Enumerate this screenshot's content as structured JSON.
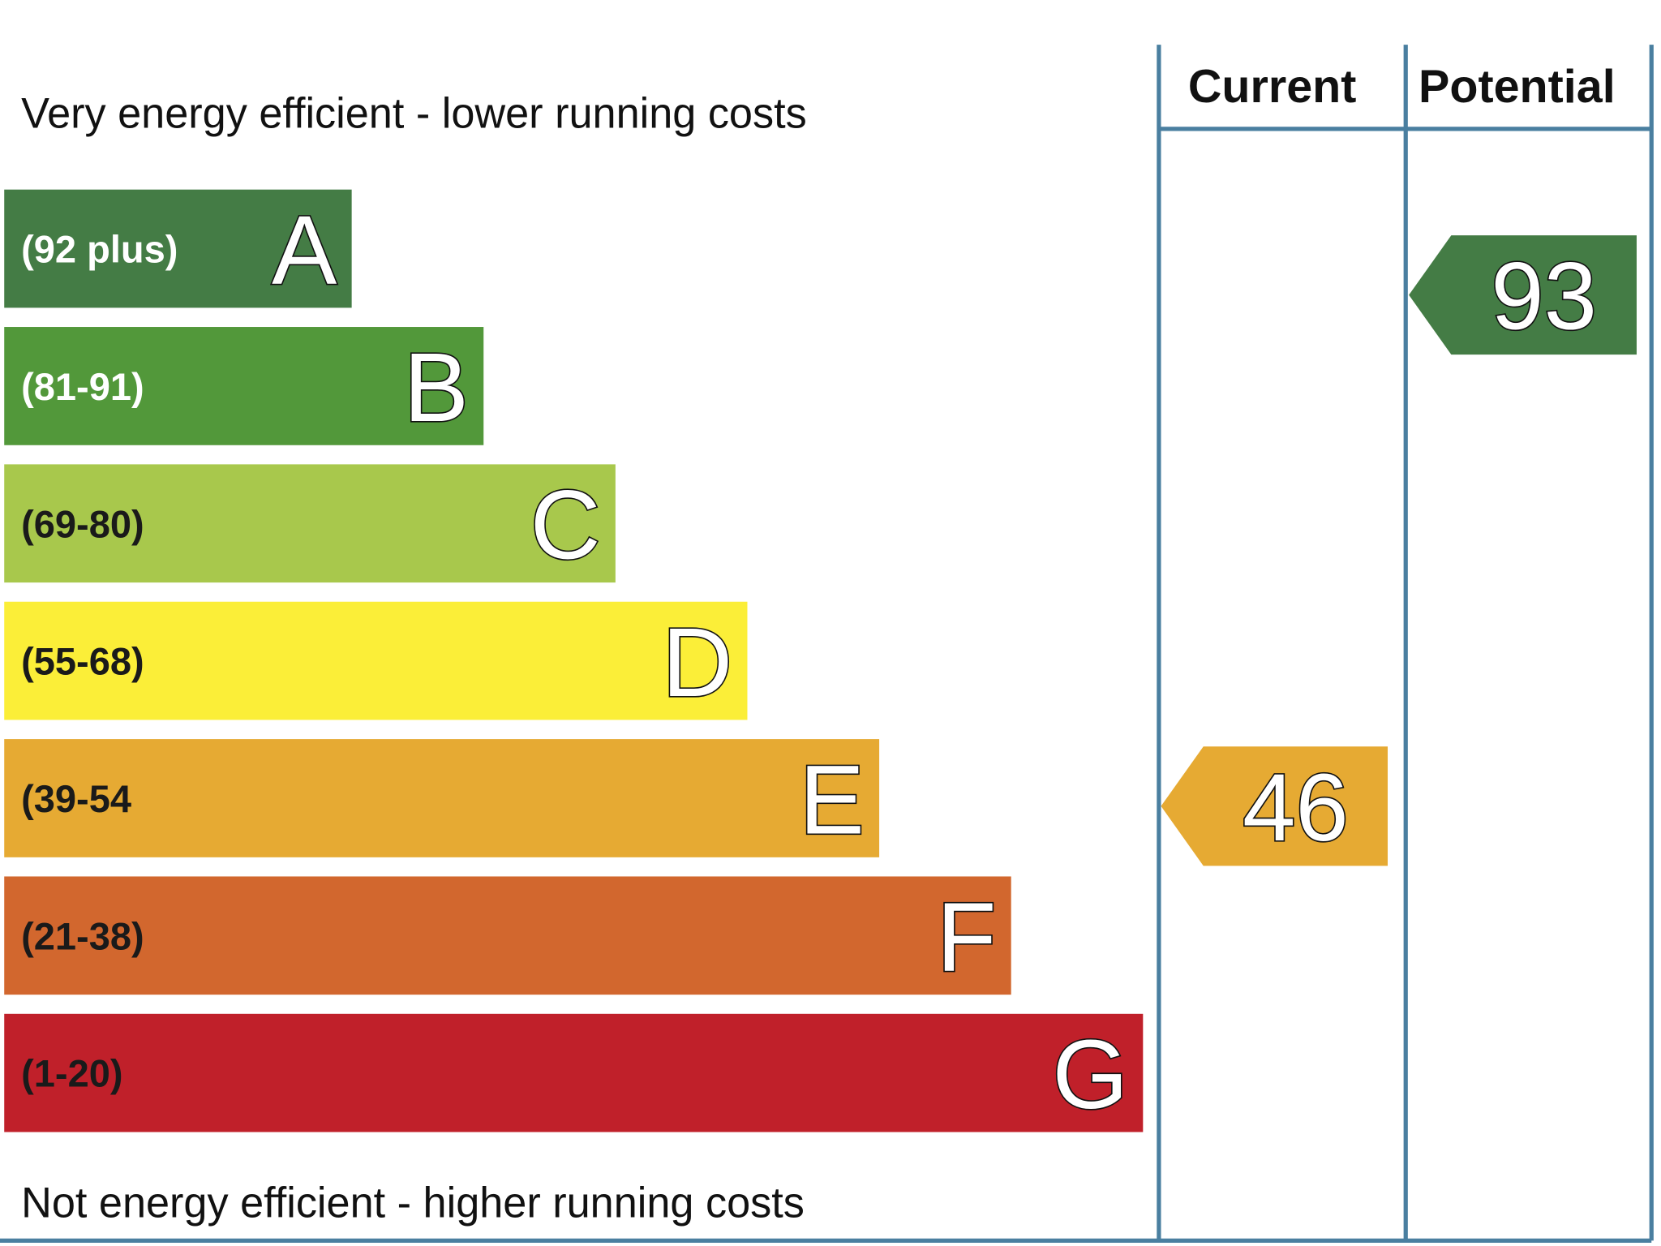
{
  "top_label": "Very energy efficient - lower running costs",
  "bottom_label": "Not energy efficient - higher running costs",
  "columns": [
    "Current",
    "Potential"
  ],
  "bands": [
    {
      "range": "(92 plus)",
      "letter": "A",
      "color": "#447c45",
      "text_color": "#ffffff"
    },
    {
      "range": "(81-91)",
      "letter": "B",
      "color": "#52983a",
      "text_color": "#ffffff"
    },
    {
      "range": "(69-80)",
      "letter": "C",
      "color": "#a8c84c",
      "text_color": "#1a1a1a"
    },
    {
      "range": "(55-68)",
      "letter": "D",
      "color": "#fbee38",
      "text_color": "#1a1a1a"
    },
    {
      "range": "(39-54",
      "letter": "E",
      "color": "#e6aa33",
      "text_color": "#1a1a1a"
    },
    {
      "range": "(21-38)",
      "letter": "F",
      "color": "#d2672e",
      "text_color": "#1a1a1a"
    },
    {
      "range": "(1-20)",
      "letter": "G",
      "color": "#c0202a",
      "text_color": "#1a1a1a"
    }
  ],
  "current": {
    "value": 46,
    "color": "#e6aa33"
  },
  "potential": {
    "value": 93,
    "color": "#447c45"
  }
}
